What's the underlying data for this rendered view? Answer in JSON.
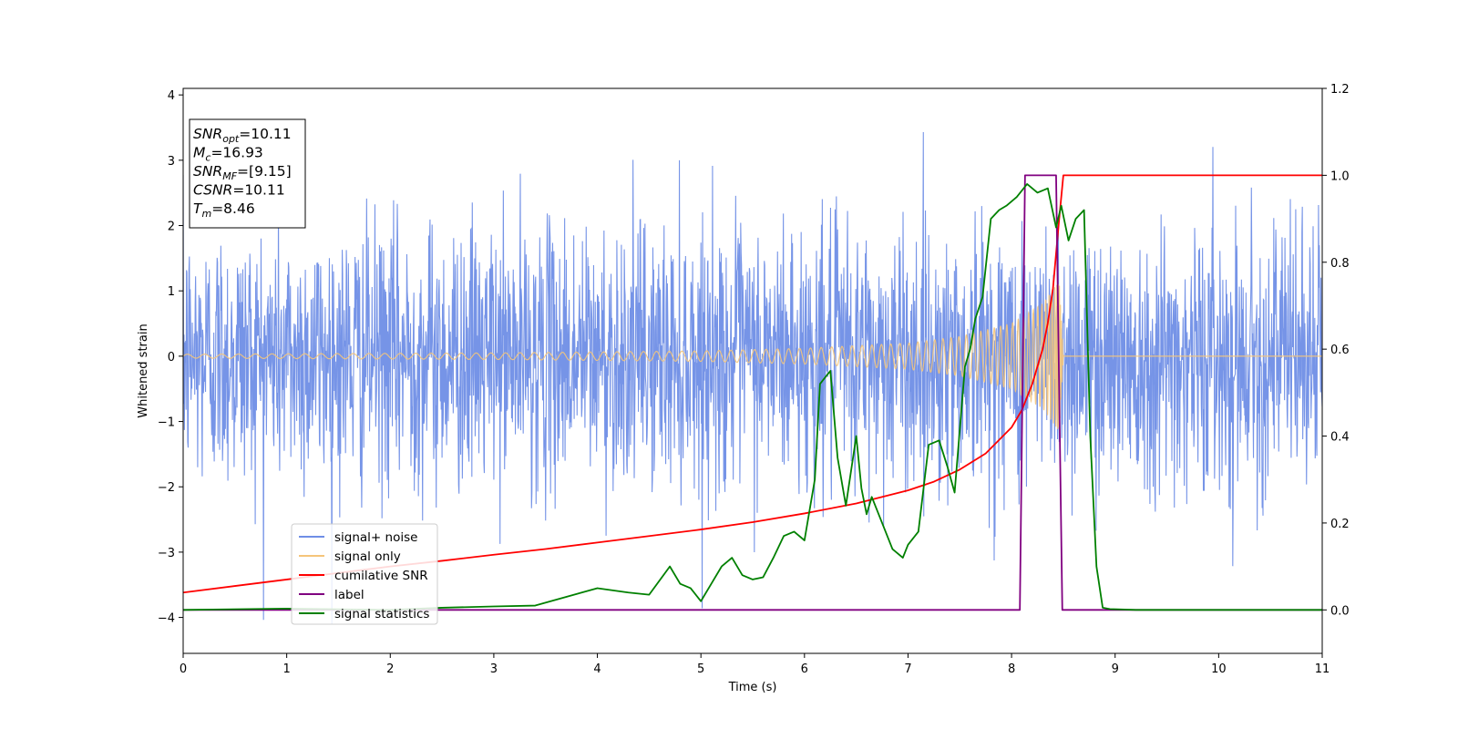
{
  "chart_data": {
    "type": "line",
    "xlabel": "Time (s)",
    "ylabel": "Whitened strain",
    "xlim": [
      0,
      11
    ],
    "ylim": [
      -4.55,
      4.1
    ],
    "y2lim": [
      -0.1,
      1.2
    ],
    "x_ticks": [
      0,
      1,
      2,
      3,
      4,
      5,
      6,
      7,
      8,
      9,
      10,
      11
    ],
    "x_tick_labels": [
      "0",
      "1",
      "2",
      "3",
      "4",
      "5",
      "6",
      "7",
      "8",
      "9",
      "10",
      "11"
    ],
    "y_ticks": [
      -4,
      -3,
      -2,
      -1,
      0,
      1,
      2,
      3,
      4
    ],
    "y_tick_labels": [
      "−4",
      "−3",
      "−2",
      "−1",
      "0",
      "1",
      "2",
      "3",
      "4"
    ],
    "y2_ticks": [
      0.0,
      0.2,
      0.4,
      0.6,
      0.8,
      1.0,
      1.2
    ],
    "y2_tick_labels": [
      "0.0",
      "0.2",
      "0.4",
      "0.6",
      "0.8",
      "1.0",
      "1.2"
    ],
    "grid": false,
    "legend_position": "lower-left",
    "annotation_box": {
      "position": "top-left",
      "lines": [
        {
          "main": "SNR",
          "sub": "opt",
          "rest": "=10.11"
        },
        {
          "main": "M",
          "sub": "c",
          "rest": "=16.93"
        },
        {
          "main": "SNR",
          "sub": "MF",
          "rest": "=[9.15]"
        },
        {
          "main": "CSNR",
          "sub": "",
          "rest": "=10.11"
        },
        {
          "main": "T",
          "sub": "m",
          "rest": "=8.46"
        }
      ]
    },
    "series": [
      {
        "name": "signal+ noise",
        "axis": "left",
        "color": "#6f8ee6",
        "style": "noise",
        "noise_sigma": 1.0,
        "sample_step": 0.004,
        "x_range": [
          0,
          11
        ]
      },
      {
        "name": "signal only",
        "axis": "left",
        "color": "#f5c57a",
        "style": "chirp",
        "merger_time": 8.46,
        "amplitude_points": [
          [
            0,
            0.03
          ],
          [
            3,
            0.05
          ],
          [
            5,
            0.08
          ],
          [
            6,
            0.12
          ],
          [
            7,
            0.2
          ],
          [
            7.5,
            0.3
          ],
          [
            8.0,
            0.5
          ],
          [
            8.3,
            0.8
          ],
          [
            8.46,
            1.15
          ]
        ],
        "end_time": 8.5
      },
      {
        "name": "cumilative SNR",
        "axis": "right",
        "color": "#ff0000",
        "x": [
          0,
          0.5,
          1,
          1.5,
          2,
          2.5,
          3,
          3.5,
          4,
          4.5,
          5,
          5.5,
          6,
          6.5,
          7,
          7.25,
          7.5,
          7.75,
          8.0,
          8.1,
          8.2,
          8.3,
          8.35,
          8.4,
          8.43,
          8.46,
          8.5,
          11
        ],
        "values": [
          0.04,
          0.055,
          0.07,
          0.085,
          0.1,
          0.113,
          0.127,
          0.14,
          0.155,
          0.17,
          0.185,
          0.202,
          0.222,
          0.245,
          0.275,
          0.295,
          0.323,
          0.36,
          0.42,
          0.46,
          0.52,
          0.6,
          0.66,
          0.74,
          0.82,
          0.9,
          1.0,
          1.0
        ]
      },
      {
        "name": "label",
        "axis": "right",
        "color": "#800080",
        "x": [
          0,
          8.08,
          8.13,
          8.43,
          8.49,
          11
        ],
        "values": [
          0.0,
          0.0,
          1.0,
          1.0,
          0.0,
          0.0
        ]
      },
      {
        "name": "signal statistics",
        "axis": "right",
        "color": "#008000",
        "x": [
          0,
          1,
          2,
          2.5,
          3,
          3.4,
          3.7,
          4.0,
          4.3,
          4.5,
          4.7,
          4.8,
          4.9,
          5.0,
          5.1,
          5.2,
          5.3,
          5.4,
          5.5,
          5.6,
          5.7,
          5.8,
          5.9,
          6.0,
          6.1,
          6.15,
          6.25,
          6.32,
          6.4,
          6.5,
          6.55,
          6.6,
          6.65,
          6.75,
          6.85,
          6.95,
          7.0,
          7.1,
          7.2,
          7.3,
          7.38,
          7.45,
          7.55,
          7.6,
          7.65,
          7.72,
          7.8,
          7.88,
          7.95,
          8.05,
          8.15,
          8.25,
          8.35,
          8.43,
          8.48,
          8.55,
          8.62,
          8.7,
          8.76,
          8.82,
          8.88,
          8.95,
          9.2,
          11
        ],
        "values": [
          0.0,
          0.003,
          0.0,
          0.005,
          0.008,
          0.01,
          0.03,
          0.05,
          0.04,
          0.035,
          0.1,
          0.06,
          0.05,
          0.02,
          0.06,
          0.1,
          0.12,
          0.08,
          0.07,
          0.075,
          0.12,
          0.17,
          0.18,
          0.16,
          0.3,
          0.52,
          0.55,
          0.35,
          0.24,
          0.4,
          0.28,
          0.22,
          0.26,
          0.2,
          0.14,
          0.12,
          0.15,
          0.18,
          0.38,
          0.39,
          0.33,
          0.27,
          0.56,
          0.6,
          0.67,
          0.72,
          0.9,
          0.92,
          0.93,
          0.95,
          0.98,
          0.96,
          0.97,
          0.88,
          0.93,
          0.85,
          0.9,
          0.92,
          0.4,
          0.1,
          0.005,
          0.002,
          0.0,
          0.0
        ]
      }
    ]
  }
}
